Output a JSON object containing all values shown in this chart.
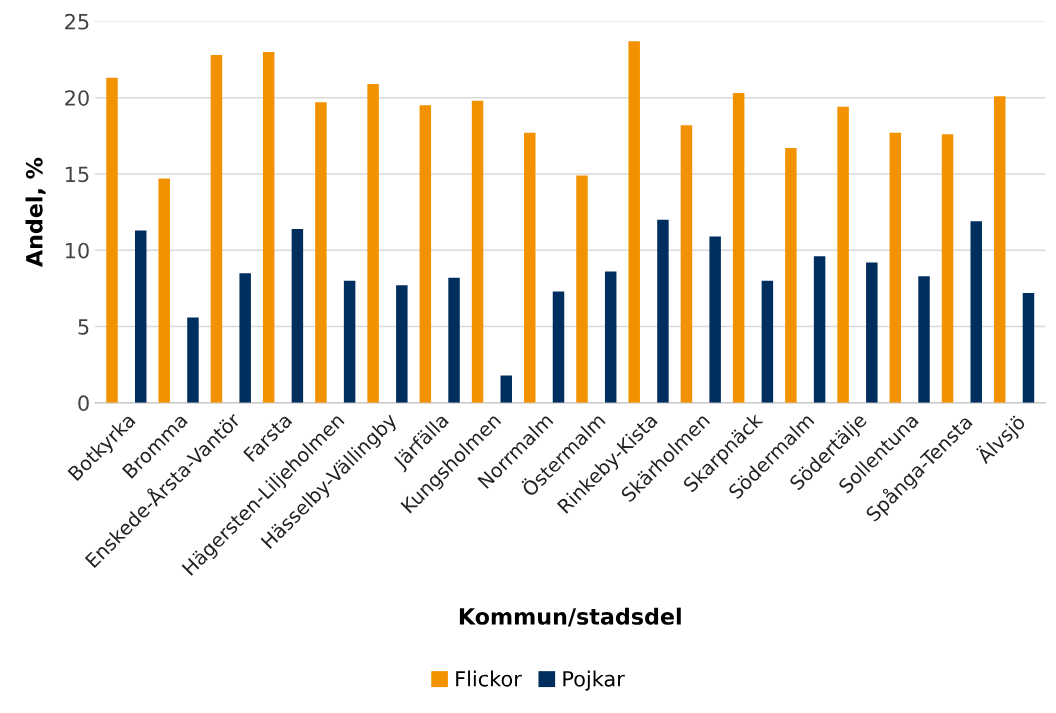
{
  "chart_data": {
    "type": "bar",
    "xlabel": "Kommun/stadsdel",
    "ylabel": "Andel, %",
    "categories": [
      "Botkyrka",
      "Bromma",
      "Enskede-Årsta-Vantör",
      "Farsta",
      "Hägersten-Liljeholmen",
      "Hässelby-Vällingby",
      "Järfälla",
      "Kungsholmen",
      "Norrmalm",
      "Östermalm",
      "Rinkeby-Kista",
      "Skärholmen",
      "Skarpnäck",
      "Södermalm",
      "Södertälje",
      "Sollentuna",
      "Spånga-Tensta",
      "Älvsjö"
    ],
    "series": [
      {
        "name": "Flickor",
        "color": "#f39200",
        "values": [
          21.3,
          14.7,
          22.8,
          23.0,
          19.7,
          20.9,
          19.5,
          19.8,
          17.7,
          14.9,
          23.7,
          18.2,
          20.3,
          16.7,
          19.4,
          17.7,
          17.6,
          20.1
        ]
      },
      {
        "name": "Pojkar",
        "color": "#002f5f",
        "values": [
          11.3,
          5.6,
          8.5,
          11.4,
          8.0,
          7.7,
          8.2,
          1.8,
          7.3,
          8.6,
          12.0,
          10.9,
          8.0,
          9.6,
          9.2,
          8.3,
          11.9,
          7.2
        ]
      }
    ],
    "ylim": [
      0,
      25
    ],
    "yticks": [
      0,
      5,
      10,
      15,
      20,
      25
    ],
    "grid": "y",
    "legend": "bottom"
  }
}
